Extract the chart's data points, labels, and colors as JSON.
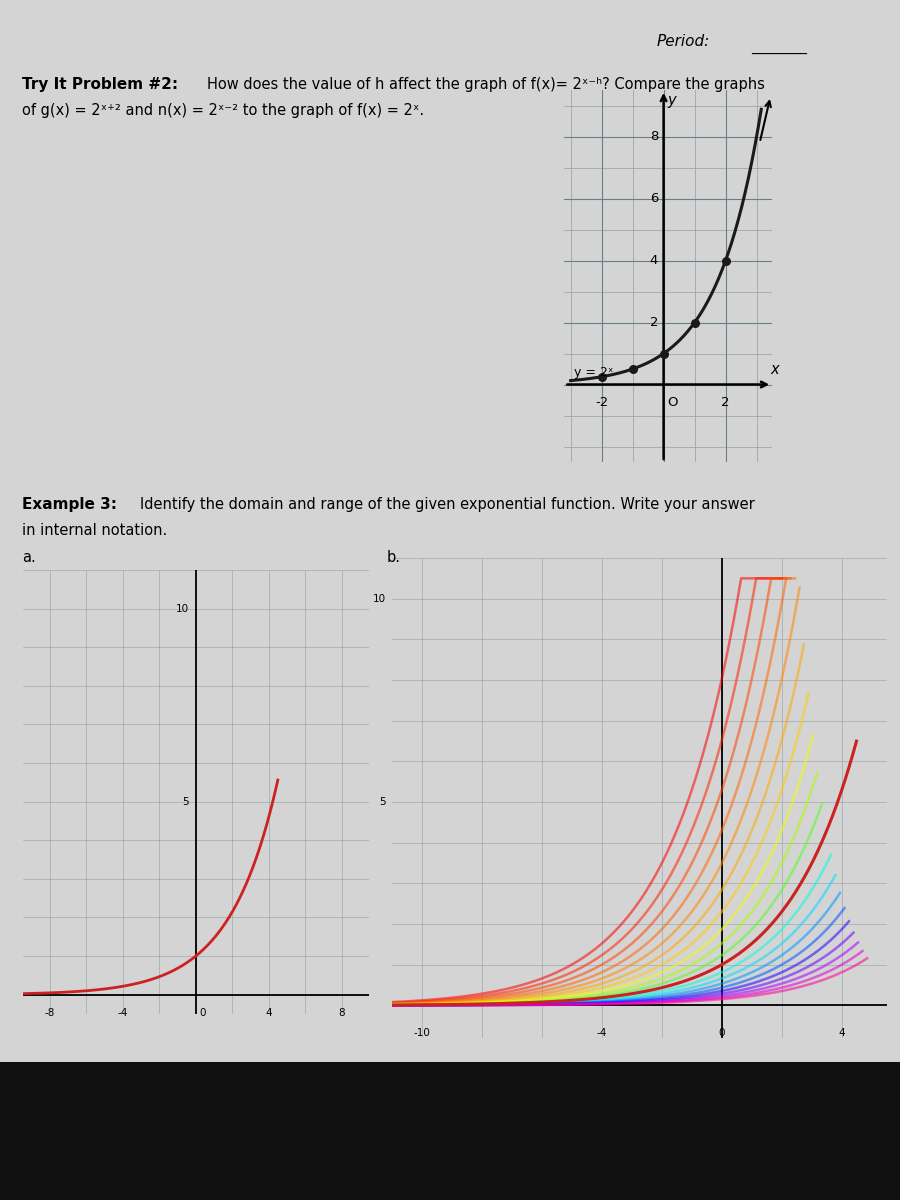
{
  "page_bg": "#d4d4d4",
  "content_bg": "#dcdcdc",
  "black_bar_bg": "#111111",
  "period_label": "Period:",
  "try_it_bold": "Try It Problem #2:",
  "try_it_text": " How does the value of h affect the graph of f(x)= 2x⁻ʰ? Compare the graphs",
  "try_it_line2": "of g(x) = 2x⁺² and n(x) = 2x⁻² to the graph of f(x) = 2x.",
  "graph_xlim": [
    -3.2,
    3.2
  ],
  "graph_ylim": [
    -2.5,
    9.5
  ],
  "curve_color": "#1a1a1a",
  "dot_color": "#1a1a1a",
  "dot_points_x": [
    -2,
    -1,
    0,
    1,
    2
  ],
  "example3_bold": "Example 3:",
  "example3_text": " Identify the domain and range of the given exponential function. Write your answer",
  "example3_line2": "in internal notation.",
  "sub_label_a": "a.",
  "sub_label_b": "b.",
  "red_curve_color": "#cc2222",
  "graph_bg": "#bcc5cc",
  "graph2_bg": "#c8cdd2",
  "grid_color": "#8fa0a8",
  "rainbow_colors": [
    "#ff0000",
    "#ff2200",
    "#ff4400",
    "#ff6600",
    "#ff8800",
    "#ffaa00",
    "#ffcc00",
    "#eeff00",
    "#aaff00",
    "#55ff22",
    "#00ff88",
    "#00ffdd",
    "#00ddff",
    "#0099ff",
    "#0055ff",
    "#2200ff",
    "#6600ff",
    "#aa00ff",
    "#dd00cc",
    "#ff0099"
  ]
}
